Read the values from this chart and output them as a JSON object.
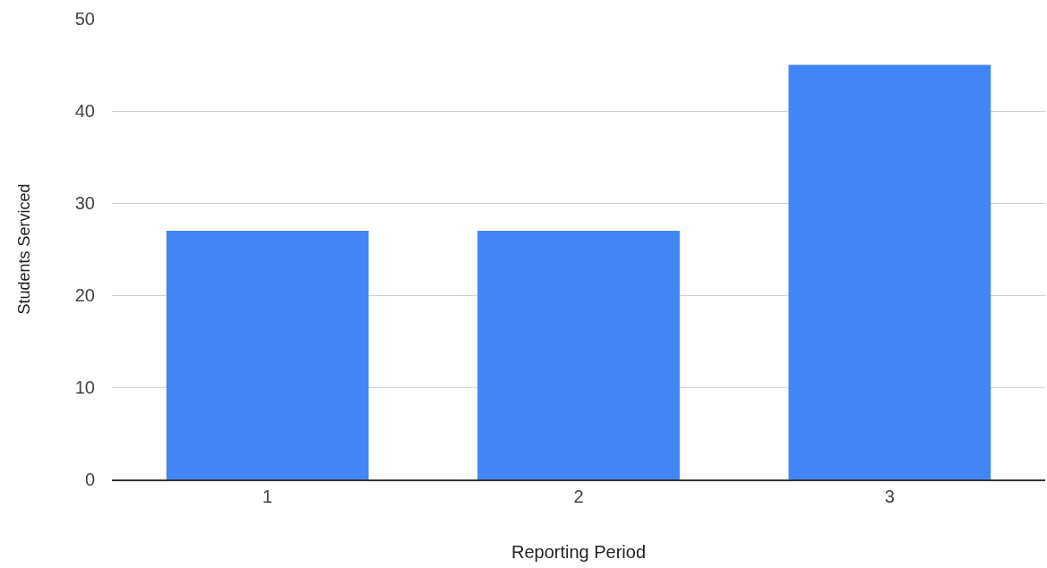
{
  "chart_data": {
    "type": "bar",
    "xlabel": "Reporting Period",
    "ylabel": "Students Serviced",
    "categories": [
      "1",
      "2",
      "3"
    ],
    "series": [
      {
        "color": "#4285f4",
        "values": [
          27,
          27,
          45
        ]
      }
    ],
    "ylim": [
      0,
      50
    ],
    "yticks": [
      0,
      10,
      20,
      30,
      40,
      50
    ],
    "grid": "y"
  }
}
